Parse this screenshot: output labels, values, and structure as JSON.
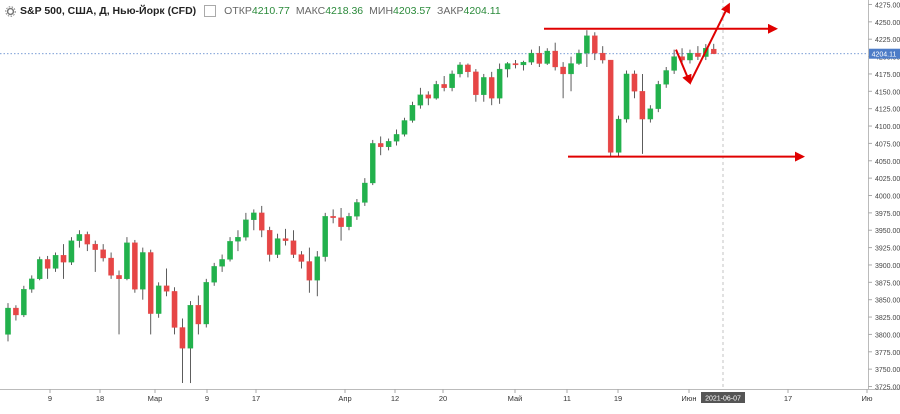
{
  "header": {
    "symbol": "S&P 500, США, Д, Нью-Йорк (CFD)",
    "open_label": "ОТКР",
    "open": "4210.77",
    "high_label": "МАКС",
    "high": "4218.36",
    "low_label": "МИН",
    "low": "4203.57",
    "close_label": "ЗАКР",
    "close": "4204.11"
  },
  "chart_data": {
    "type": "candlestick",
    "ylim": [
      3720,
      4280
    ],
    "y_ticks": [
      "3725.00",
      "3750.00",
      "3775.00",
      "3800.00",
      "3825.00",
      "3850.00",
      "3875.00",
      "3900.00",
      "3925.00",
      "3950.00",
      "3975.00",
      "4000.00",
      "4025.00",
      "4050.00",
      "4075.00",
      "4100.00",
      "4125.00",
      "4150.00",
      "4175.00",
      "4200.00",
      "4225.00",
      "4250.00",
      "4275.00"
    ],
    "x_tick_labels": [
      "9",
      "18",
      "Мар",
      "9",
      "17",
      "Апр",
      "12",
      "20",
      "Май",
      "11",
      "19",
      "Июн",
      "17",
      "Ию"
    ],
    "current_price_label": "4204.11",
    "crosshair_date": "2021-06-07",
    "colors": {
      "up": "#22b14c",
      "down": "#e64646",
      "annotation": "#e00000",
      "price_line": "#4d7cc7"
    },
    "candles": [
      [
        3800,
        3845,
        3790,
        3838
      ],
      [
        3838,
        3842,
        3820,
        3828
      ],
      [
        3828,
        3870,
        3825,
        3865
      ],
      [
        3865,
        3885,
        3860,
        3880
      ],
      [
        3880,
        3912,
        3878,
        3908
      ],
      [
        3908,
        3913,
        3880,
        3895
      ],
      [
        3895,
        3918,
        3890,
        3914
      ],
      [
        3914,
        3930,
        3880,
        3904
      ],
      [
        3904,
        3940,
        3900,
        3935
      ],
      [
        3935,
        3950,
        3925,
        3944
      ],
      [
        3944,
        3948,
        3920,
        3930
      ],
      [
        3930,
        3935,
        3890,
        3922
      ],
      [
        3922,
        3930,
        3905,
        3910
      ],
      [
        3910,
        3918,
        3880,
        3885
      ],
      [
        3885,
        3892,
        3800,
        3880
      ],
      [
        3880,
        3940,
        3878,
        3932
      ],
      [
        3932,
        3936,
        3860,
        3865
      ],
      [
        3865,
        3925,
        3850,
        3918
      ],
      [
        3918,
        3922,
        3800,
        3830
      ],
      [
        3830,
        3875,
        3824,
        3870
      ],
      [
        3870,
        3895,
        3855,
        3862
      ],
      [
        3862,
        3868,
        3800,
        3810
      ],
      [
        3810,
        3823,
        3730,
        3780
      ],
      [
        3780,
        3848,
        3730,
        3842
      ],
      [
        3842,
        3856,
        3800,
        3815
      ],
      [
        3815,
        3880,
        3810,
        3875
      ],
      [
        3875,
        3903,
        3870,
        3898
      ],
      [
        3898,
        3915,
        3890,
        3908
      ],
      [
        3908,
        3940,
        3905,
        3934
      ],
      [
        3934,
        3950,
        3920,
        3940
      ],
      [
        3940,
        3975,
        3935,
        3965
      ],
      [
        3965,
        3980,
        3950,
        3975
      ],
      [
        3975,
        3985,
        3940,
        3950
      ],
      [
        3950,
        3955,
        3905,
        3915
      ],
      [
        3915,
        3945,
        3910,
        3938
      ],
      [
        3938,
        3952,
        3928,
        3935
      ],
      [
        3935,
        3950,
        3910,
        3915
      ],
      [
        3915,
        3920,
        3895,
        3905
      ],
      [
        3905,
        3925,
        3860,
        3878
      ],
      [
        3878,
        3920,
        3855,
        3912
      ],
      [
        3912,
        3975,
        3905,
        3970
      ],
      [
        3970,
        3980,
        3960,
        3968
      ],
      [
        3968,
        3982,
        3935,
        3955
      ],
      [
        3955,
        3975,
        3950,
        3970
      ],
      [
        3970,
        3995,
        3965,
        3990
      ],
      [
        3990,
        4025,
        3985,
        4018
      ],
      [
        4018,
        4080,
        4015,
        4075
      ],
      [
        4075,
        4085,
        4058,
        4070
      ],
      [
        4070,
        4082,
        4065,
        4078
      ],
      [
        4078,
        4095,
        4072,
        4088
      ],
      [
        4088,
        4112,
        4085,
        4108
      ],
      [
        4108,
        4135,
        4105,
        4130
      ],
      [
        4130,
        4155,
        4125,
        4145
      ],
      [
        4145,
        4150,
        4130,
        4140
      ],
      [
        4140,
        4165,
        4138,
        4160
      ],
      [
        4160,
        4172,
        4150,
        4155
      ],
      [
        4155,
        4180,
        4150,
        4175
      ],
      [
        4175,
        4192,
        4170,
        4188
      ],
      [
        4188,
        4190,
        4170,
        4178
      ],
      [
        4178,
        4182,
        4135,
        4145
      ],
      [
        4145,
        4175,
        4135,
        4170
      ],
      [
        4170,
        4178,
        4130,
        4140
      ],
      [
        4140,
        4190,
        4132,
        4182
      ],
      [
        4182,
        4192,
        4170,
        4190
      ],
      [
        4190,
        4195,
        4183,
        4188
      ],
      [
        4188,
        4194,
        4180,
        4192
      ],
      [
        4192,
        4210,
        4188,
        4205
      ],
      [
        4205,
        4215,
        4185,
        4190
      ],
      [
        4190,
        4212,
        4188,
        4208
      ],
      [
        4208,
        4220,
        4180,
        4185
      ],
      [
        4185,
        4192,
        4140,
        4175
      ],
      [
        4175,
        4200,
        4150,
        4190
      ],
      [
        4190,
        4210,
        4188,
        4205
      ],
      [
        4205,
        4238,
        4185,
        4230
      ],
      [
        4230,
        4235,
        4195,
        4205
      ],
      [
        4205,
        4215,
        4190,
        4195
      ],
      [
        4195,
        4195,
        4055,
        4062
      ],
      [
        4062,
        4115,
        4055,
        4110
      ],
      [
        4110,
        4180,
        4105,
        4175
      ],
      [
        4175,
        4180,
        4140,
        4150
      ],
      [
        4150,
        4175,
        4060,
        4110
      ],
      [
        4110,
        4130,
        4105,
        4125
      ],
      [
        4125,
        4165,
        4120,
        4160
      ],
      [
        4160,
        4185,
        4155,
        4180
      ],
      [
        4180,
        4210,
        4175,
        4200
      ],
      [
        4200,
        4212,
        4188,
        4195
      ],
      [
        4195,
        4210,
        4190,
        4205
      ],
      [
        4205,
        4215,
        4195,
        4200
      ],
      [
        4200,
        4218,
        4195,
        4212
      ],
      [
        4210.77,
        4218.36,
        4203.57,
        4204.11
      ]
    ]
  }
}
